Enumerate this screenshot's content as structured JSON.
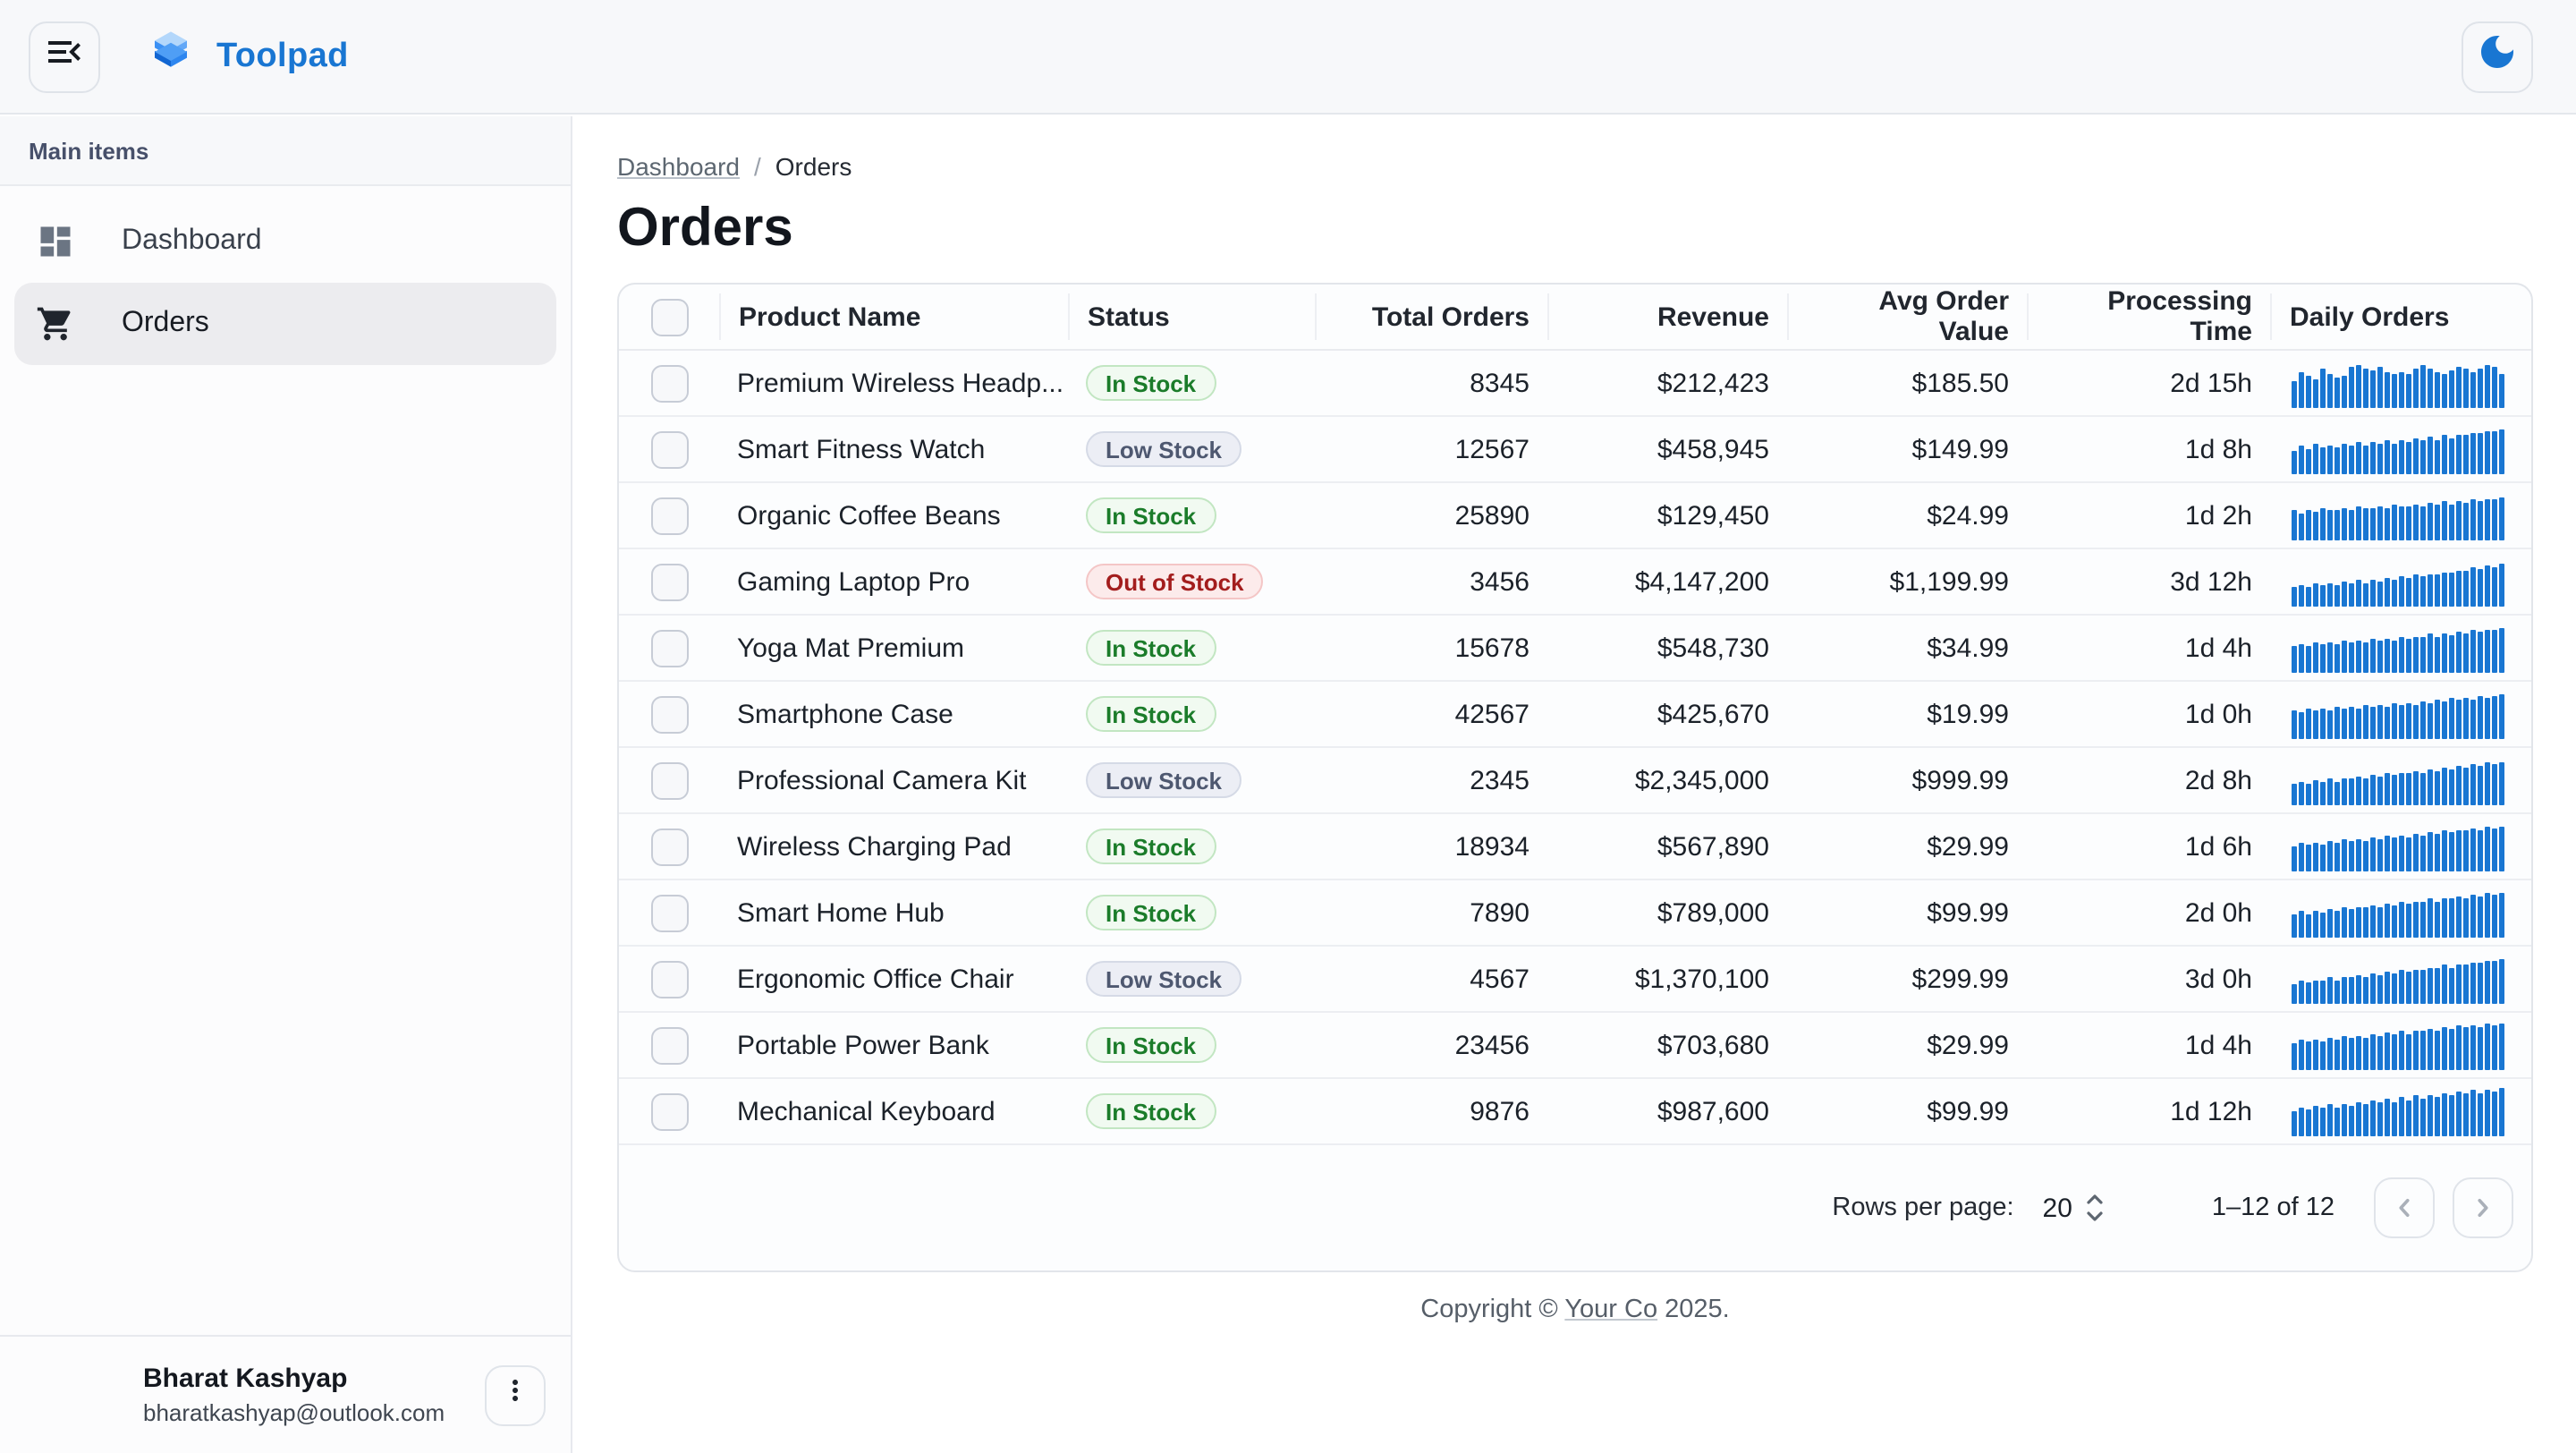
{
  "app": {
    "title": "Toolpad",
    "brand_color": "#1976d2"
  },
  "header": {
    "menu_icon": "menu-open-icon",
    "theme_icon": "dark-mode-moon-icon",
    "theme_color": "#1976d2"
  },
  "sidebar": {
    "section_label": "Main items",
    "items": [
      {
        "label": "Dashboard",
        "icon": "dashboard-icon",
        "selected": false
      },
      {
        "label": "Orders",
        "icon": "shopping-cart-icon",
        "selected": true
      }
    ],
    "user": {
      "name": "Bharat Kashyap",
      "email": "bharatkashyap@outlook.com",
      "menu_icon": "kebab-menu-icon"
    }
  },
  "breadcrumb": {
    "items": [
      "Dashboard",
      "Orders"
    ]
  },
  "page": {
    "title": "Orders"
  },
  "table": {
    "columns": [
      "Product Name",
      "Status",
      "Total Orders",
      "Revenue",
      "Avg Order Value",
      "Processing Time",
      "Daily Orders"
    ],
    "sparkline_color": "#1976d2",
    "status_colors": {
      "in-stock": {
        "bg": "#f1faf1",
        "border": "#c2e6c2",
        "text": "#1b7c2a"
      },
      "low-stock": {
        "bg": "#eceef5",
        "border": "#d5dae6",
        "text": "#4e5870"
      },
      "out-of-stock": {
        "bg": "#fcebeb",
        "border": "#f4c6c6",
        "text": "#a31d1d"
      }
    },
    "rows": [
      {
        "product": "Premium Wireless Headp...",
        "status": "In Stock",
        "status_kind": "in-stock",
        "total_orders": "8345",
        "revenue": "$212,423",
        "avg_order_value": "$185.50",
        "processing_time": "2d 15h",
        "daily": [
          55,
          72,
          64,
          58,
          78,
          70,
          62,
          66,
          82,
          88,
          80,
          76,
          84,
          72,
          68,
          74,
          70,
          78,
          86,
          80,
          72,
          68,
          76,
          82,
          78,
          74,
          80,
          88,
          84,
          70
        ]
      },
      {
        "product": "Smart Fitness Watch",
        "status": "Low Stock",
        "status_kind": "low-stock",
        "total_orders": "12567",
        "revenue": "$458,945",
        "avg_order_value": "$149.99",
        "processing_time": "1d 8h",
        "daily": [
          48,
          56,
          50,
          60,
          52,
          58,
          54,
          62,
          56,
          64,
          58,
          66,
          60,
          68,
          62,
          70,
          66,
          72,
          68,
          76,
          70,
          78,
          74,
          80,
          78,
          84,
          82,
          88,
          86,
          92
        ]
      },
      {
        "product": "Organic Coffee Beans",
        "status": "In Stock",
        "status_kind": "in-stock",
        "total_orders": "25890",
        "revenue": "$129,450",
        "avg_order_value": "$24.99",
        "processing_time": "1d 2h",
        "daily": [
          60,
          55,
          62,
          58,
          64,
          60,
          62,
          66,
          62,
          68,
          64,
          66,
          70,
          66,
          72,
          68,
          70,
          74,
          70,
          76,
          72,
          78,
          74,
          80,
          76,
          82,
          78,
          84,
          82,
          86
        ]
      },
      {
        "product": "Gaming Laptop Pro",
        "status": "Out of Stock",
        "status_kind": "out-of-stock",
        "total_orders": "3456",
        "revenue": "$4,147,200",
        "avg_order_value": "$1,199.99",
        "processing_time": "3d 12h",
        "daily": [
          38,
          44,
          40,
          46,
          42,
          48,
          44,
          50,
          46,
          52,
          48,
          54,
          50,
          56,
          54,
          60,
          58,
          64,
          60,
          66,
          64,
          70,
          68,
          74,
          72,
          78,
          76,
          82,
          80,
          86
        ]
      },
      {
        "product": "Yoga Mat Premium",
        "status": "In Stock",
        "status_kind": "in-stock",
        "total_orders": "15678",
        "revenue": "$548,730",
        "avg_order_value": "$34.99",
        "processing_time": "1d 4h",
        "daily": [
          52,
          58,
          54,
          60,
          56,
          62,
          58,
          64,
          60,
          66,
          62,
          68,
          64,
          70,
          66,
          72,
          68,
          74,
          72,
          78,
          74,
          80,
          76,
          82,
          80,
          86,
          82,
          88,
          86,
          90
        ]
      },
      {
        "product": "Smartphone Case",
        "status": "In Stock",
        "status_kind": "in-stock",
        "total_orders": "42567",
        "revenue": "$425,670",
        "avg_order_value": "$19.99",
        "processing_time": "1d 0h",
        "daily": [
          58,
          52,
          60,
          56,
          62,
          58,
          64,
          60,
          66,
          62,
          68,
          64,
          70,
          66,
          72,
          68,
          74,
          70,
          76,
          72,
          78,
          76,
          82,
          78,
          84,
          80,
          86,
          84,
          88,
          90
        ]
      },
      {
        "product": "Professional Camera Kit",
        "status": "Low Stock",
        "status_kind": "low-stock",
        "total_orders": "2345",
        "revenue": "$2,345,000",
        "avg_order_value": "$999.99",
        "processing_time": "2d 8h",
        "daily": [
          42,
          48,
          44,
          50,
          46,
          52,
          48,
          54,
          52,
          58,
          54,
          60,
          58,
          64,
          60,
          66,
          64,
          70,
          66,
          72,
          70,
          76,
          72,
          78,
          76,
          82,
          80,
          86,
          84,
          88
        ]
      },
      {
        "product": "Wireless Charging Pad",
        "status": "In Stock",
        "status_kind": "in-stock",
        "total_orders": "18934",
        "revenue": "$567,890",
        "avg_order_value": "$29.99",
        "processing_time": "1d 6h",
        "daily": [
          50,
          56,
          52,
          58,
          54,
          60,
          58,
          64,
          60,
          66,
          62,
          68,
          66,
          72,
          68,
          74,
          70,
          76,
          74,
          80,
          76,
          82,
          78,
          84,
          82,
          88,
          84,
          90,
          88,
          92
        ]
      },
      {
        "product": "Smart Home Hub",
        "status": "In Stock",
        "status_kind": "in-stock",
        "total_orders": "7890",
        "revenue": "$789,000",
        "avg_order_value": "$99.99",
        "processing_time": "2d 0h",
        "daily": [
          46,
          52,
          48,
          54,
          50,
          56,
          54,
          60,
          56,
          62,
          60,
          66,
          62,
          68,
          66,
          72,
          68,
          74,
          72,
          78,
          74,
          80,
          78,
          84,
          80,
          86,
          84,
          90,
          86,
          92
        ]
      },
      {
        "product": "Ergonomic Office Chair",
        "status": "Low Stock",
        "status_kind": "low-stock",
        "total_orders": "4567",
        "revenue": "$1,370,100",
        "avg_order_value": "$299.99",
        "processing_time": "3d 0h",
        "daily": [
          40,
          46,
          42,
          48,
          46,
          52,
          48,
          54,
          52,
          58,
          54,
          60,
          58,
          64,
          62,
          68,
          64,
          70,
          68,
          74,
          72,
          78,
          74,
          80,
          78,
          84,
          82,
          88,
          86,
          92
        ]
      },
      {
        "product": "Portable Power Bank",
        "status": "In Stock",
        "status_kind": "in-stock",
        "total_orders": "23456",
        "revenue": "$703,680",
        "avg_order_value": "$29.99",
        "processing_time": "1d 4h",
        "daily": [
          54,
          60,
          56,
          62,
          58,
          64,
          62,
          68,
          64,
          70,
          66,
          72,
          70,
          76,
          72,
          78,
          74,
          80,
          78,
          84,
          80,
          86,
          84,
          90,
          86,
          92,
          88,
          94,
          92,
          96
        ]
      },
      {
        "product": "Mechanical Keyboard",
        "status": "In Stock",
        "status_kind": "in-stock",
        "total_orders": "9876",
        "revenue": "$987,600",
        "avg_order_value": "$99.99",
        "processing_time": "1d 12h",
        "daily": [
          50,
          58,
          52,
          60,
          56,
          64,
          58,
          66,
          62,
          70,
          64,
          72,
          68,
          76,
          70,
          78,
          74,
          82,
          76,
          84,
          80,
          88,
          82,
          90,
          86,
          94,
          88,
          96,
          92,
          98
        ]
      }
    ]
  },
  "pagination": {
    "rows_per_page_label": "Rows per page:",
    "rows_per_page": "20",
    "range": "1–12 of 12"
  },
  "footer": {
    "prefix": "Copyright © ",
    "company": "Your Co",
    "suffix": " 2025."
  }
}
